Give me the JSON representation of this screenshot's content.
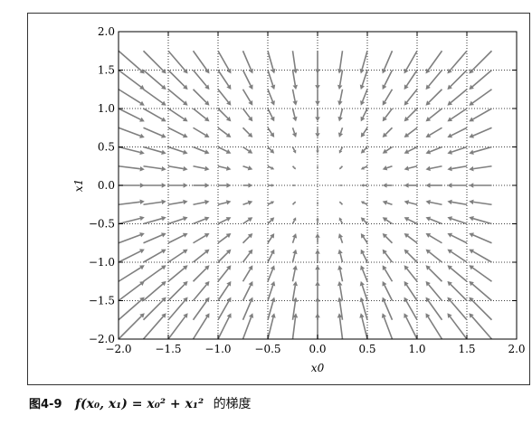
{
  "chart_data": {
    "type": "quiver",
    "xlabel": "x0",
    "ylabel": "x1",
    "xlim": [
      -2.0,
      2.0
    ],
    "ylim": [
      -2.0,
      2.0
    ],
    "xticks": [
      "−2.0",
      "−1.5",
      "−1.0",
      "−0.5",
      "0.0",
      "0.5",
      "1.0",
      "1.5",
      "2.0"
    ],
    "yticks": [
      "−2.0",
      "−1.5",
      "−1.0",
      "−0.5",
      "0.0",
      "0.5",
      "1.0",
      "1.5",
      "2.0"
    ],
    "grid": true,
    "grid_style": "dotted",
    "arrow_color": "#7f7f7f",
    "vector_field": "arrows point along -gradient of f(x0,x1) = x0^2 + x1^2, i.e. (-2*x0, -2*x1)",
    "x_samples": [
      -2.0,
      -1.75,
      -1.5,
      -1.25,
      -1.0,
      -0.75,
      -0.5,
      -0.25,
      0.0,
      0.25,
      0.5,
      0.75,
      1.0,
      1.25,
      1.5,
      1.75
    ],
    "y_samples": [
      -2.0,
      -1.75,
      -1.5,
      -1.25,
      -1.0,
      -0.75,
      -0.5,
      -0.25,
      0.0,
      0.25,
      0.5,
      0.75,
      1.0,
      1.25,
      1.5,
      1.75
    ]
  },
  "caption": {
    "figure_label": "图4-9",
    "equation": "f(x₀, x₁) = x₀² + x₁²",
    "description": "的梯度"
  }
}
